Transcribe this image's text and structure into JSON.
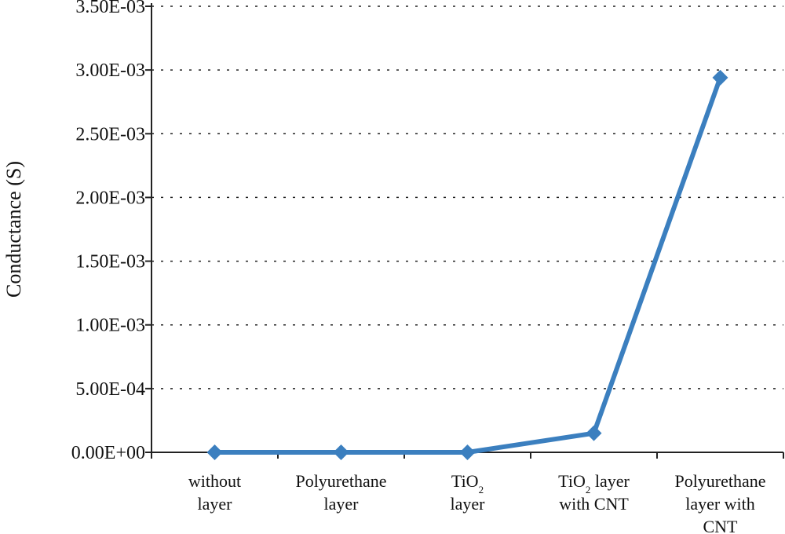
{
  "chart_data": {
    "type": "line",
    "ylabel": "Conductance (S)",
    "xlabel": "",
    "ylim": [
      0,
      0.0035
    ],
    "y_ticks": [
      0,
      0.0005,
      0.001,
      0.0015,
      0.002,
      0.0025,
      0.003,
      0.0035
    ],
    "y_tick_labels": [
      "0.00E+00",
      "5.00E-04",
      "1.00E-03",
      "1.50E-03",
      "2.00E-03",
      "2.50E-03",
      "3.00E-03",
      "3.50E-03"
    ],
    "grid": true,
    "line_color": "#3b7fbf",
    "categories": [
      {
        "lines": [
          [
            {
              "t": "without"
            }
          ],
          [
            {
              "t": "layer"
            }
          ]
        ]
      },
      {
        "lines": [
          [
            {
              "t": "Polyurethane"
            }
          ],
          [
            {
              "t": "layer"
            }
          ]
        ]
      },
      {
        "lines": [
          [
            {
              "t": "TiO"
            },
            {
              "t": "2",
              "sub": true
            }
          ],
          [
            {
              "t": "layer"
            }
          ]
        ]
      },
      {
        "lines": [
          [
            {
              "t": "TiO"
            },
            {
              "t": "2",
              "sub": true
            },
            {
              "t": " layer"
            }
          ],
          [
            {
              "t": "with CNT"
            }
          ]
        ]
      },
      {
        "lines": [
          [
            {
              "t": "Polyurethane"
            }
          ],
          [
            {
              "t": "layer with"
            }
          ],
          [
            {
              "t": "CNT"
            }
          ]
        ]
      }
    ],
    "series": [
      {
        "values": [
          0,
          0,
          0,
          0.00015,
          0.00294
        ]
      }
    ]
  }
}
